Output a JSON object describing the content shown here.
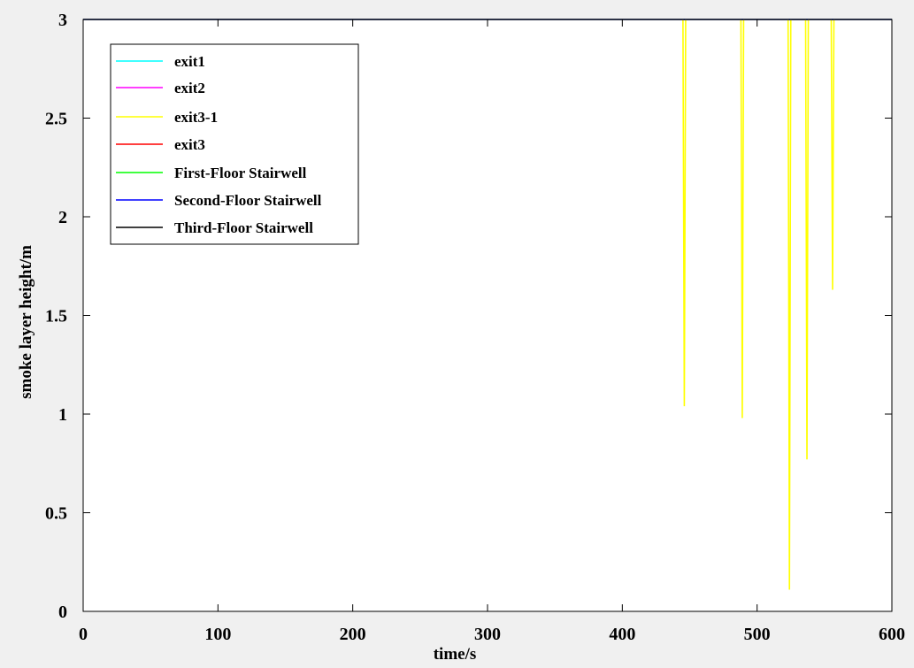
{
  "chart_data": {
    "type": "line",
    "title": "",
    "xlabel": "time/s",
    "ylabel": "smoke layer height/m",
    "xlim": [
      0,
      600
    ],
    "ylim": [
      0,
      3
    ],
    "xticks": [
      0,
      100,
      200,
      300,
      400,
      500,
      600
    ],
    "yticks": [
      0,
      0.5,
      1,
      1.5,
      2,
      2.5,
      3
    ],
    "xtick_labels": [
      "0",
      "100",
      "200",
      "300",
      "400",
      "500",
      "600"
    ],
    "ytick_labels": [
      "0",
      "0.5",
      "1",
      "1.5",
      "2",
      "2.5",
      "3"
    ],
    "grid": false,
    "legend_position": "top-left",
    "series": [
      {
        "name": "exit1",
        "color": "#00ffff",
        "points": [
          [
            0,
            3.0
          ],
          [
            100,
            3.0
          ],
          [
            200,
            3.0
          ],
          [
            300,
            3.0
          ],
          [
            400,
            3.0
          ],
          [
            500,
            3.0
          ],
          [
            600,
            3.0
          ]
        ]
      },
      {
        "name": "exit2",
        "color": "#ff00ff",
        "points": [
          [
            0,
            3.0
          ],
          [
            100,
            3.0
          ],
          [
            200,
            3.0
          ],
          [
            300,
            3.0
          ],
          [
            400,
            3.0
          ],
          [
            500,
            3.0
          ],
          [
            600,
            3.0
          ]
        ]
      },
      {
        "name": "exit3-1",
        "color": "#ffff00",
        "points": [
          [
            0,
            3.0
          ],
          [
            100,
            3.0
          ],
          [
            200,
            3.0
          ],
          [
            300,
            3.0
          ],
          [
            400,
            3.0
          ],
          [
            445,
            3.0
          ],
          [
            446,
            1.04
          ],
          [
            447,
            3.0
          ],
          [
            488,
            3.0
          ],
          [
            489,
            0.98
          ],
          [
            490,
            3.0
          ],
          [
            523,
            3.0
          ],
          [
            524,
            0.11
          ],
          [
            525,
            3.0
          ],
          [
            536,
            3.0
          ],
          [
            537,
            0.77
          ],
          [
            538,
            3.0
          ],
          [
            555,
            3.0
          ],
          [
            556,
            1.63
          ],
          [
            557,
            3.0
          ],
          [
            600,
            3.0
          ]
        ]
      },
      {
        "name": "exit3",
        "color": "#ff0000",
        "points": [
          [
            0,
            3.0
          ],
          [
            100,
            3.0
          ],
          [
            200,
            3.0
          ],
          [
            300,
            3.0
          ],
          [
            400,
            3.0
          ],
          [
            500,
            3.0
          ],
          [
            600,
            3.0
          ]
        ]
      },
      {
        "name": "First-Floor Stairwell",
        "color": "#00ff00",
        "points": [
          [
            0,
            3.0
          ],
          [
            100,
            3.0
          ],
          [
            200,
            3.0
          ],
          [
            300,
            3.0
          ],
          [
            400,
            3.0
          ],
          [
            500,
            3.0
          ],
          [
            600,
            3.0
          ]
        ]
      },
      {
        "name": "Second-Floor Stairwell",
        "color": "#0000ff",
        "points": [
          [
            0,
            3.0
          ],
          [
            100,
            3.0
          ],
          [
            200,
            3.0
          ],
          [
            300,
            3.0
          ],
          [
            400,
            3.0
          ],
          [
            500,
            3.0
          ],
          [
            600,
            3.0
          ]
        ]
      },
      {
        "name": "Third-Floor Stairwell",
        "color": "#000000",
        "points": [
          [
            0,
            3.0
          ],
          [
            100,
            3.0
          ],
          [
            200,
            3.0
          ],
          [
            300,
            3.0
          ],
          [
            400,
            3.0
          ],
          [
            500,
            3.0
          ],
          [
            600,
            3.0
          ]
        ]
      }
    ]
  }
}
